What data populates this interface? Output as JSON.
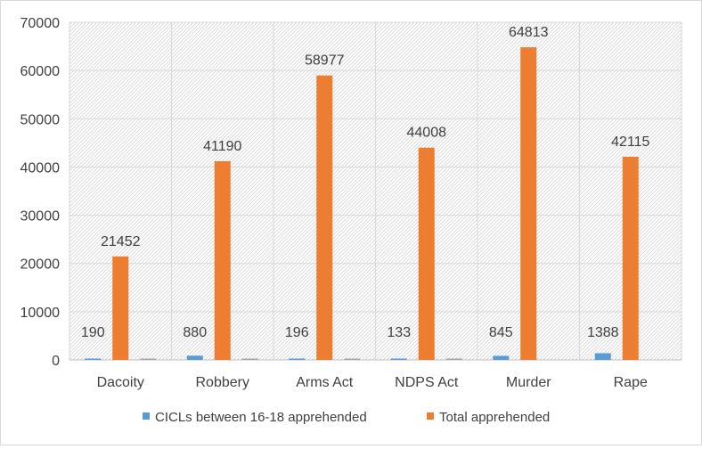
{
  "chart_data": {
    "type": "bar",
    "title": "",
    "xlabel": "",
    "ylabel": "",
    "categories": [
      "Dacoity",
      "Robbery",
      "Arms Act",
      "NDPS Act",
      "Murder",
      "Rape"
    ],
    "series": [
      {
        "name": "CICLs between 16-18 apprehended",
        "color": "#5b9bd5",
        "values": [
          190,
          880,
          196,
          133,
          845,
          1388
        ]
      },
      {
        "name": "Total apprehended",
        "color": "#ed7d31",
        "values": [
          21452,
          41190,
          58977,
          44008,
          64813,
          42115
        ]
      },
      {
        "name": "",
        "color": "#a5a5a5",
        "values": [
          60,
          55,
          50,
          45,
          0,
          0
        ]
      }
    ],
    "data_labels_series": [
      0,
      1
    ],
    "ylim": [
      0,
      70000
    ],
    "yticks": [
      0,
      10000,
      20000,
      30000,
      40000,
      50000,
      60000,
      70000
    ],
    "grid": true,
    "legend": "bottom",
    "plot_background": "hatched"
  }
}
